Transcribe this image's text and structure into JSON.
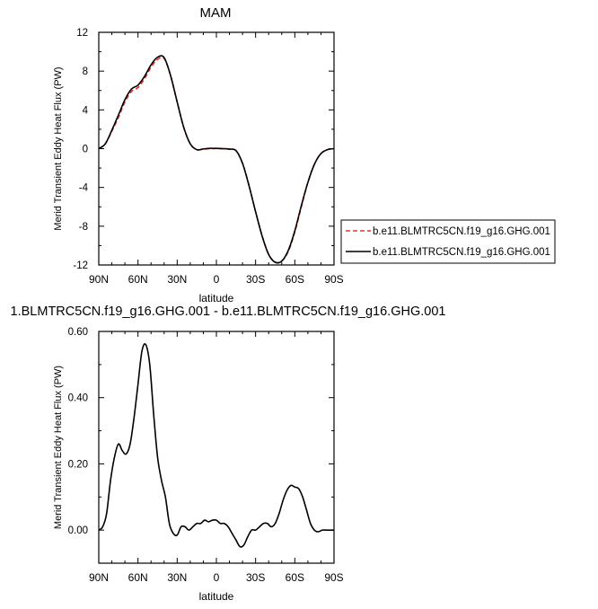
{
  "chart_data": [
    {
      "type": "line",
      "title": "MAM",
      "xlabel": "latitude",
      "ylabel": "Merid Transient Eddy Heat Flux (PW)",
      "xlim": [
        90,
        -90
      ],
      "ylim": [
        -12,
        12
      ],
      "x_ticks": [
        90,
        60,
        30,
        0,
        -30,
        -60,
        -90
      ],
      "x_tick_labels": [
        "90N",
        "60N",
        "30N",
        "0",
        "30S",
        "60S",
        "90S"
      ],
      "y_ticks": [
        -12,
        -8,
        -4,
        0,
        4,
        8,
        12
      ],
      "y_tick_labels": [
        "-12",
        "-8",
        "-4",
        "0",
        "4",
        "8",
        "12"
      ],
      "legend_position": "right",
      "series": [
        {
          "name": "b.e11.BLMTRC5CN.f19_g16.GHG.001",
          "color": "#e8302a",
          "dash": "dashed",
          "x": [
            90,
            85,
            80,
            75,
            70,
            65,
            60,
            55,
            50,
            45,
            40,
            35,
            30,
            25,
            20,
            15,
            10,
            5,
            0,
            -5,
            -10,
            -15,
            -20,
            -25,
            -30,
            -35,
            -40,
            -45,
            -50,
            -55,
            -60,
            -65,
            -70,
            -75,
            -80,
            -85,
            -90
          ],
          "y": [
            0.0,
            0.5,
            1.8,
            3.2,
            4.8,
            5.9,
            6.3,
            7.2,
            8.4,
            9.2,
            9.3,
            7.5,
            4.8,
            2.2,
            0.5,
            -0.1,
            -0.05,
            0.0,
            0.0,
            0.0,
            -0.05,
            -0.2,
            -1.5,
            -3.8,
            -6.5,
            -9.0,
            -10.9,
            -11.7,
            -11.6,
            -10.6,
            -8.6,
            -6.0,
            -3.5,
            -1.6,
            -0.5,
            -0.1,
            0.0
          ]
        },
        {
          "name": "b.e11.BLMTRC5CN.f19_g16.GHG.001",
          "color": "#000000",
          "dash": "solid",
          "x": [
            90,
            85,
            80,
            75,
            70,
            65,
            60,
            55,
            50,
            45,
            40,
            35,
            30,
            25,
            20,
            15,
            10,
            5,
            0,
            -5,
            -10,
            -15,
            -20,
            -25,
            -30,
            -35,
            -40,
            -45,
            -50,
            -55,
            -60,
            -65,
            -70,
            -75,
            -80,
            -85,
            -90
          ],
          "y": [
            0.0,
            0.5,
            1.9,
            3.45,
            5.05,
            6.15,
            6.55,
            7.45,
            8.65,
            9.43,
            9.4,
            7.52,
            4.81,
            2.2,
            0.5,
            -0.1,
            -0.03,
            0.03,
            0.03,
            0.0,
            -0.05,
            -0.2,
            -1.52,
            -3.85,
            -6.52,
            -9.02,
            -10.92,
            -11.72,
            -11.6,
            -10.5,
            -8.48,
            -5.88,
            -3.48,
            -1.61,
            -0.51,
            -0.1,
            0.0
          ]
        }
      ]
    },
    {
      "type": "line",
      "title": "1.BLMTRC5CN.f19_g16.GHG.001 - b.e11.BLMTRC5CN.f19_g16.GHG.001",
      "xlabel": "latitude",
      "ylabel": "Merid Transient Eddy Heat Flux (PW)",
      "xlim": [
        90,
        -90
      ],
      "ylim": [
        -0.1,
        0.6
      ],
      "x_ticks": [
        90,
        60,
        30,
        0,
        -30,
        -60,
        -90
      ],
      "x_tick_labels": [
        "90N",
        "60N",
        "30N",
        "0",
        "30S",
        "60S",
        "90S"
      ],
      "y_ticks": [
        0.0,
        0.2,
        0.4,
        0.6
      ],
      "y_tick_labels": [
        "0.00",
        "0.20",
        "0.40",
        "0.60"
      ],
      "series": [
        {
          "color": "#000000",
          "dash": "solid",
          "x": [
            90,
            87,
            84,
            81,
            78,
            75,
            72,
            69,
            66,
            63,
            60,
            57,
            54,
            51,
            48,
            45,
            42,
            39,
            36,
            33,
            30,
            27,
            24,
            21,
            18,
            15,
            12,
            9,
            6,
            3,
            0,
            -3,
            -6,
            -9,
            -12,
            -15,
            -18,
            -21,
            -24,
            -27,
            -30,
            -33,
            -36,
            -39,
            -42,
            -45,
            -48,
            -51,
            -54,
            -57,
            -60,
            -63,
            -66,
            -69,
            -72,
            -75,
            -78,
            -81,
            -84,
            -87,
            -90
          ],
          "y": [
            0.0,
            0.01,
            0.05,
            0.15,
            0.22,
            0.26,
            0.24,
            0.23,
            0.26,
            0.34,
            0.44,
            0.54,
            0.56,
            0.5,
            0.35,
            0.22,
            0.15,
            0.1,
            0.02,
            -0.01,
            -0.015,
            0.01,
            0.01,
            0.0,
            0.01,
            0.02,
            0.02,
            0.03,
            0.025,
            0.03,
            0.03,
            0.02,
            0.02,
            0.01,
            -0.01,
            -0.03,
            -0.05,
            -0.045,
            -0.02,
            0.0,
            0.0,
            0.01,
            0.02,
            0.02,
            0.01,
            0.02,
            0.05,
            0.09,
            0.12,
            0.135,
            0.13,
            0.125,
            0.1,
            0.06,
            0.02,
            0.0,
            -0.005,
            0.0,
            0.0,
            0.0,
            0.0
          ]
        }
      ]
    }
  ]
}
